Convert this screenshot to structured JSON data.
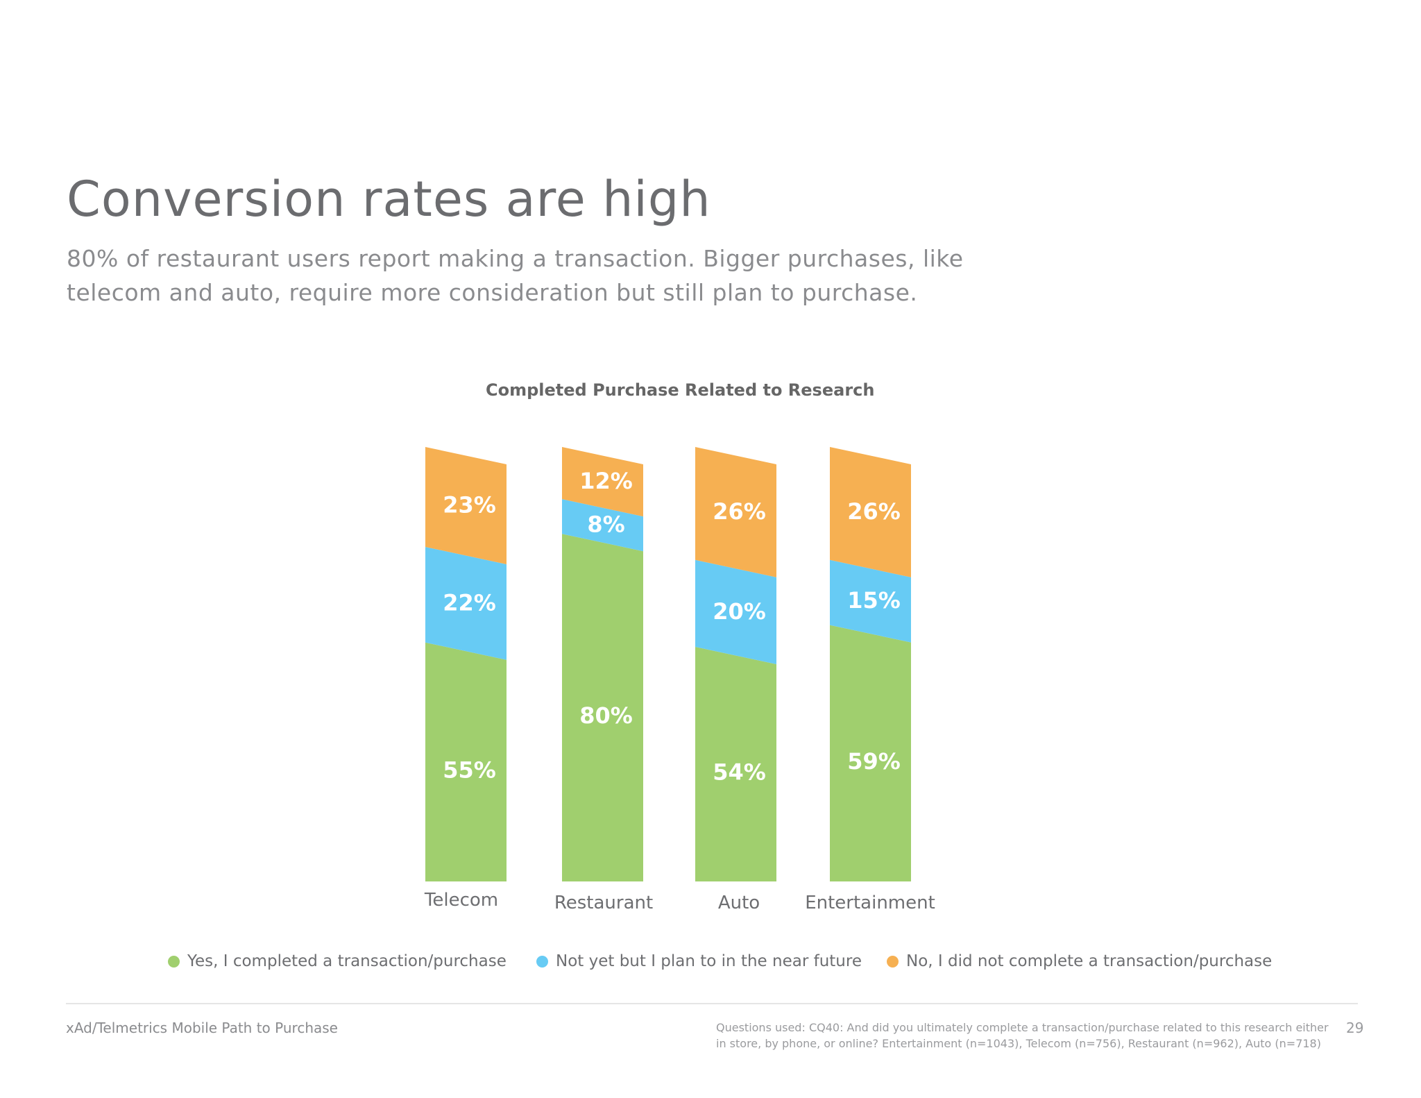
{
  "page": {
    "title": "Conversion rates are high",
    "subtitle_lines": [
      "80% of restaurant users report making a transaction. Bigger purchases, like",
      "telecom and auto, require more consideration but still plan to purchase."
    ]
  },
  "chart_data": {
    "type": "bar",
    "stacked": true,
    "title": "Completed Purchase Related to Research",
    "categories": [
      "Telecom",
      "Restaurant",
      "Auto",
      "Entertainment"
    ],
    "series": [
      {
        "name": "Yes, I completed a transaction/purchase",
        "values": [
          55,
          80,
          54,
          59
        ],
        "color": "#a0cf6e"
      },
      {
        "name": "Not yet but I plan to in the near future",
        "values": [
          22,
          8,
          20,
          15
        ],
        "color": "#67cbf4"
      },
      {
        "name": "No, I did not complete a transaction/purchase",
        "values": [
          23,
          12,
          26,
          26
        ],
        "color": "#f6b052"
      }
    ],
    "data_labels": [
      [
        "55%",
        "80%",
        "54%",
        "59%"
      ],
      [
        "22%",
        "8%",
        "20%",
        "15%"
      ],
      [
        "23%",
        "12%",
        "26%",
        "26%"
      ]
    ],
    "legend_position": "bottom",
    "grid": false
  },
  "legend": {
    "items": [
      {
        "label": "Yes, I completed a transaction/purchase",
        "color": "#a0cf6e"
      },
      {
        "label": "Not yet but I plan to in the near future",
        "color": "#67cbf4"
      },
      {
        "label": "No, I did not complete a transaction/purchase",
        "color": "#f6b052"
      }
    ]
  },
  "footer": {
    "source": "xAd/Telmetrics Mobile Path to Purchase",
    "note_lines": [
      "Questions used: CQ40: And did you ultimately complete a transaction/purchase related to this research either",
      "in store, by phone, or online? Entertainment (n=1043), Telecom (n=756), Restaurant (n=962), Auto (n=718)"
    ],
    "page_number": "29"
  }
}
